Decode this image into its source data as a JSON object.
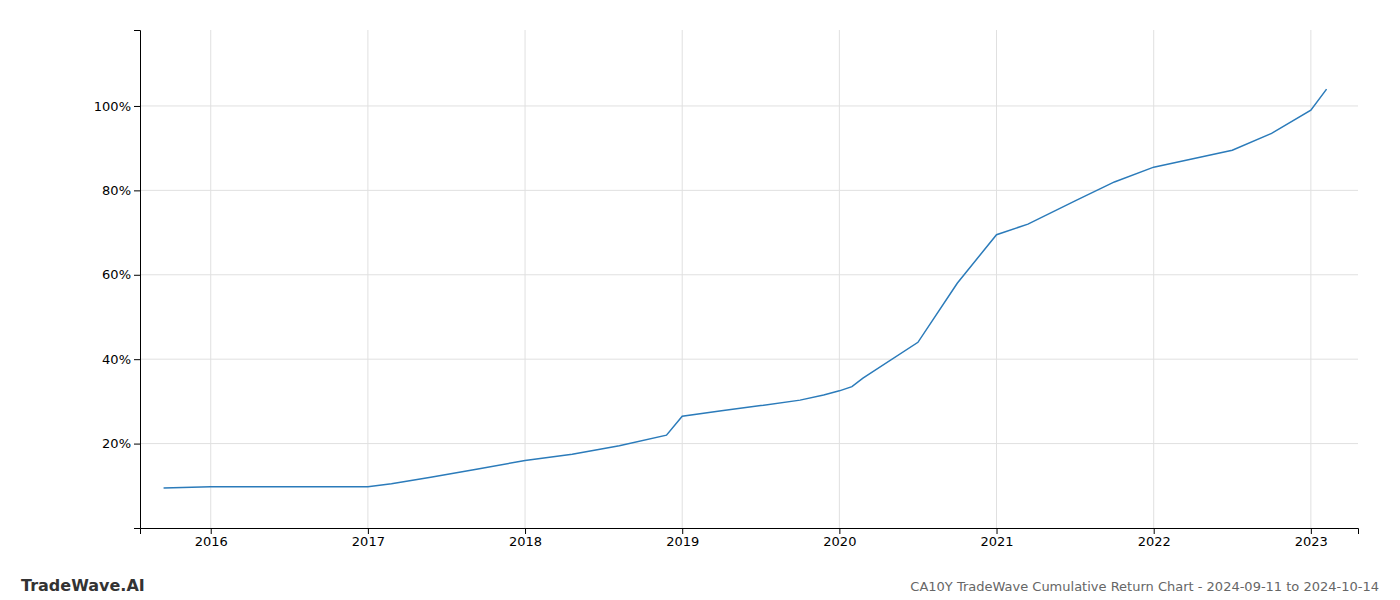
{
  "chart_data": {
    "type": "line",
    "title": "CA10Y TradeWave Cumulative Return Chart - 2024-09-11 to 2024-10-14",
    "annotations": [
      "TradeWave.AI"
    ],
    "color": "#2b7bba",
    "grid": true,
    "x": [
      2015.7,
      2016.0,
      2016.3,
      2016.6,
      2016.9,
      2017.0,
      2017.15,
      2017.4,
      2017.7,
      2018.0,
      2018.3,
      2018.6,
      2018.9,
      2019.0,
      2019.25,
      2019.5,
      2019.75,
      2019.9,
      2020.0,
      2020.08,
      2020.15,
      2020.5,
      2020.75,
      2021.0,
      2021.2,
      2021.5,
      2021.75,
      2022.0,
      2022.25,
      2022.5,
      2022.75,
      2023.0,
      2023.1
    ],
    "values": [
      0.095,
      0.098,
      0.098,
      0.098,
      0.098,
      0.098,
      0.105,
      0.12,
      0.14,
      0.16,
      0.175,
      0.195,
      0.22,
      0.265,
      0.278,
      0.29,
      0.303,
      0.315,
      0.325,
      0.335,
      0.355,
      0.44,
      0.58,
      0.695,
      0.72,
      0.775,
      0.82,
      0.855,
      0.875,
      0.895,
      0.935,
      0.99,
      1.04
    ],
    "xlim": [
      2015.55,
      2023.3
    ],
    "ylim": [
      0.0,
      1.18
    ],
    "xticks": [
      2016,
      2017,
      2018,
      2019,
      2020,
      2021,
      2022,
      2023
    ],
    "yticks": [
      {
        "value": 0.2,
        "label": "20%"
      },
      {
        "value": 0.4,
        "label": "40%"
      },
      {
        "value": 0.6,
        "label": "60%"
      },
      {
        "value": 0.8,
        "label": "80%"
      },
      {
        "value": 1.0,
        "label": "100%"
      }
    ]
  }
}
